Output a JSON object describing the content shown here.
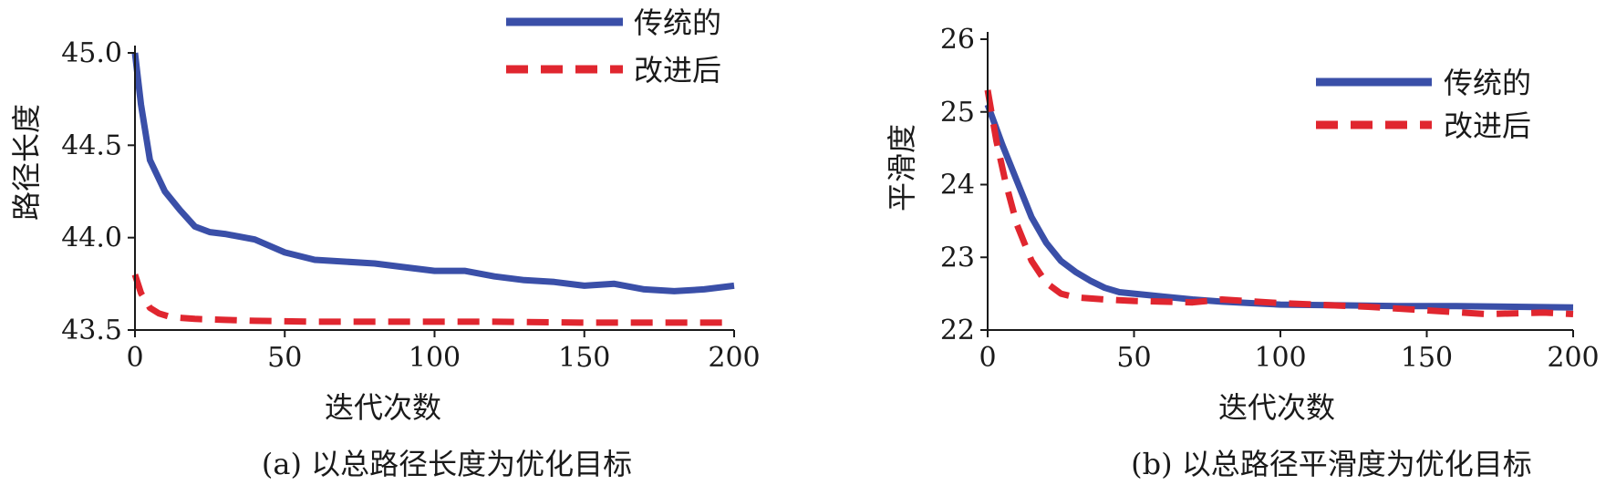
{
  "colors": {
    "traditional": "#3a4fa8",
    "improved": "#e0262f"
  },
  "chart_data": [
    {
      "type": "line",
      "caption": "(a) 以总路径长度为优化目标",
      "xlabel": "迭代次数",
      "ylabel": "路径长度",
      "xlim": [
        0,
        200
      ],
      "ylim": [
        43.5,
        45.0
      ],
      "xticks": [
        "0",
        "50",
        "100",
        "150",
        "200"
      ],
      "yticks": [
        "43.5",
        "44.0",
        "44.5",
        "45.0"
      ],
      "legend_position": "top-right",
      "series": [
        {
          "name": "传统的",
          "style": "solid",
          "x": [
            0,
            2,
            5,
            10,
            15,
            20,
            25,
            30,
            40,
            50,
            60,
            70,
            80,
            90,
            100,
            110,
            120,
            130,
            140,
            150,
            160,
            170,
            180,
            190,
            200
          ],
          "y": [
            45.0,
            44.72,
            44.42,
            44.25,
            44.15,
            44.06,
            44.03,
            44.02,
            43.99,
            43.92,
            43.88,
            43.87,
            43.86,
            43.84,
            43.82,
            43.82,
            43.79,
            43.77,
            43.76,
            43.74,
            43.75,
            43.72,
            43.71,
            43.72,
            43.74
          ]
        },
        {
          "name": "改进后",
          "style": "dashed",
          "x": [
            0,
            2,
            5,
            8,
            12,
            20,
            30,
            40,
            60,
            80,
            100,
            120,
            150,
            180,
            200
          ],
          "y": [
            43.8,
            43.7,
            43.62,
            43.59,
            43.57,
            43.56,
            43.555,
            43.55,
            43.545,
            43.545,
            43.545,
            43.545,
            43.54,
            43.54,
            43.54
          ]
        }
      ]
    },
    {
      "type": "line",
      "caption": "(b) 以总路径平滑度为优化目标",
      "xlabel": "迭代次数",
      "ylabel": "平滑度",
      "xlim": [
        0,
        200
      ],
      "ylim": [
        22,
        26
      ],
      "xticks": [
        "0",
        "50",
        "100",
        "150",
        "200"
      ],
      "yticks": [
        "22",
        "23",
        "24",
        "25",
        "26"
      ],
      "legend_position": "top-right",
      "series": [
        {
          "name": "传统的",
          "style": "solid",
          "x": [
            0,
            5,
            10,
            15,
            20,
            25,
            30,
            35,
            40,
            45,
            50,
            60,
            70,
            80,
            90,
            100,
            120,
            140,
            160,
            180,
            200
          ],
          "y": [
            25.1,
            24.55,
            24.05,
            23.55,
            23.2,
            22.95,
            22.8,
            22.68,
            22.58,
            22.52,
            22.5,
            22.46,
            22.42,
            22.39,
            22.37,
            22.35,
            22.34,
            22.33,
            22.33,
            22.32,
            22.31
          ]
        },
        {
          "name": "改进后",
          "style": "dashed",
          "x": [
            0,
            3,
            6,
            10,
            15,
            20,
            25,
            30,
            40,
            50,
            70,
            80,
            100,
            130,
            150,
            170,
            190,
            200
          ],
          "y": [
            25.3,
            24.6,
            24.05,
            23.45,
            22.95,
            22.65,
            22.5,
            22.45,
            22.42,
            22.4,
            22.38,
            22.42,
            22.37,
            22.32,
            22.27,
            22.22,
            22.24,
            22.22
          ]
        }
      ]
    }
  ]
}
